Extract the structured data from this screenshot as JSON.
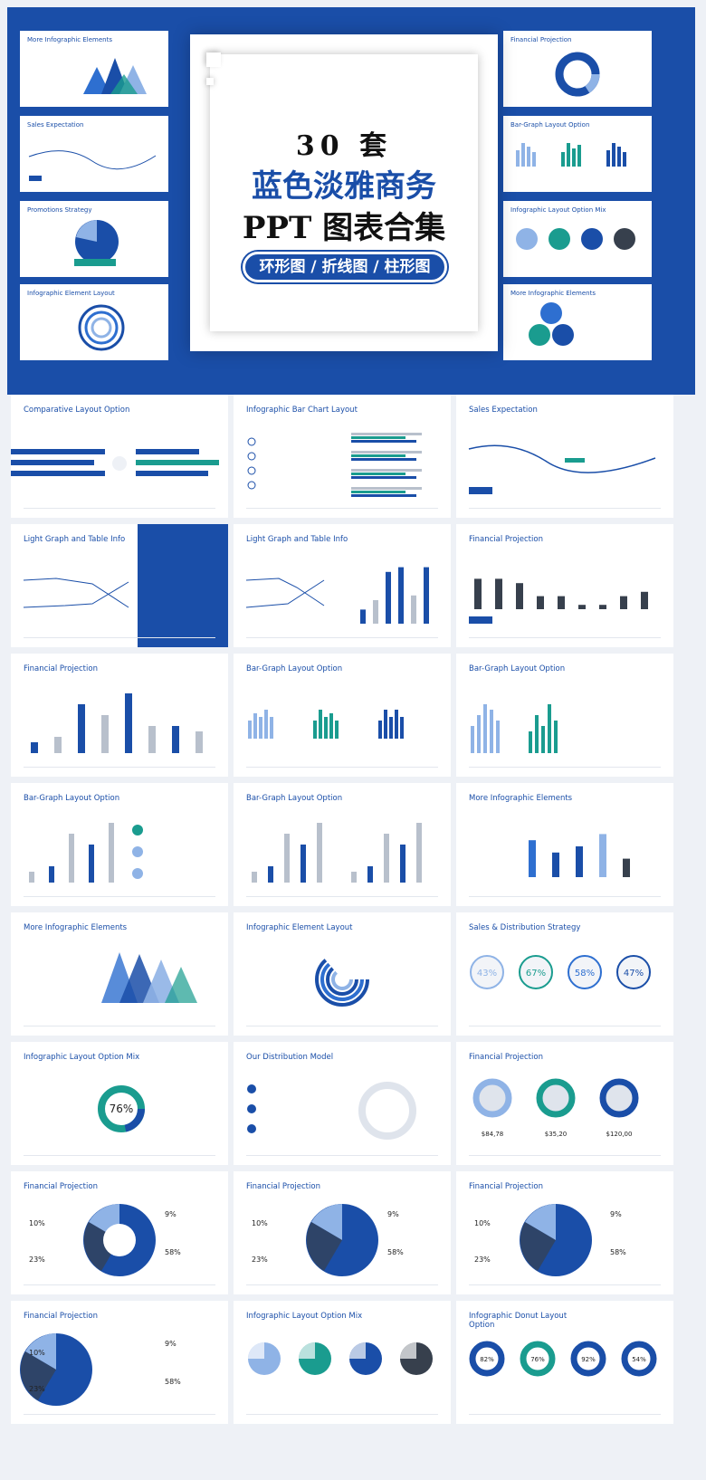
{
  "hero": {
    "number": "30 套",
    "title_blue": "蓝色淡雅商务",
    "title_black": "PPT 图表合集",
    "pill": "环形图 / 折线图 / 柱形图",
    "left_thumbs": [
      "More Infographic Elements",
      "Sales Expectation",
      "Promotions Strategy",
      "Infographic Element Layout"
    ],
    "right_thumbs": [
      "Financial Projection",
      "Bar-Graph Layout Option",
      "Infographic Layout Option Mix",
      "More Infographic Elements"
    ]
  },
  "slides": [
    {
      "title": "Comparative Layout Option",
      "kind": "compare"
    },
    {
      "title": "Infographic Bar Chart Layout",
      "kind": "hbar"
    },
    {
      "title": "Sales Expectation",
      "kind": "wave"
    },
    {
      "title": "Light Graph and Table Info",
      "kind": "lineblue"
    },
    {
      "title": "Light Graph and Table Info",
      "kind": "linebar"
    },
    {
      "title": "Financial Projection",
      "kind": "darkbars"
    },
    {
      "title": "Financial Projection",
      "kind": "bars1"
    },
    {
      "title": "Bar-Graph Layout Option",
      "kind": "groups"
    },
    {
      "title": "Bar-Graph Layout Option",
      "kind": "groups2"
    },
    {
      "title": "Bar-Graph Layout Option",
      "kind": "bars2"
    },
    {
      "title": "Bar-Graph Layout Option",
      "kind": "bars3"
    },
    {
      "title": "More Infographic Elements",
      "kind": "bars4"
    },
    {
      "title": "More Infographic Elements",
      "kind": "tri"
    },
    {
      "title": "Infographic Element Layout",
      "kind": "radial"
    },
    {
      "title": "Sales & Distribution Strategy",
      "kind": "circles"
    },
    {
      "title": "Infographic Layout Option Mix",
      "kind": "donut76"
    },
    {
      "title": "Our Distribution Model",
      "kind": "ring"
    },
    {
      "title": "Financial Projection",
      "kind": "donuts3"
    },
    {
      "title": "Financial Projection",
      "kind": "pie1"
    },
    {
      "title": "Financial Projection",
      "kind": "pie2"
    },
    {
      "title": "Financial Projection",
      "kind": "pie3"
    },
    {
      "title": "Financial Projection",
      "kind": "pie4"
    },
    {
      "title": "Infographic Layout Option Mix",
      "kind": "pies4"
    },
    {
      "title": "Infographic Donut Layout Option",
      "kind": "donuts4"
    }
  ],
  "circles_values": [
    "43%",
    "67%",
    "58%",
    "47%"
  ],
  "donut76": "76%",
  "donuts3": [
    "$84,78",
    "$35,20",
    "$120,00"
  ],
  "donuts4": [
    "82%",
    "76%",
    "92%",
    "54%"
  ],
  "pie_labels": [
    "10%",
    "23%",
    "9%",
    "58%"
  ],
  "colors": {
    "blue": "#1a4ea8",
    "mid": "#2e6fd0",
    "light": "#8fb3e6",
    "teal": "#1a9c8f",
    "grey": "#b8c0cc",
    "dark": "#37404d"
  }
}
